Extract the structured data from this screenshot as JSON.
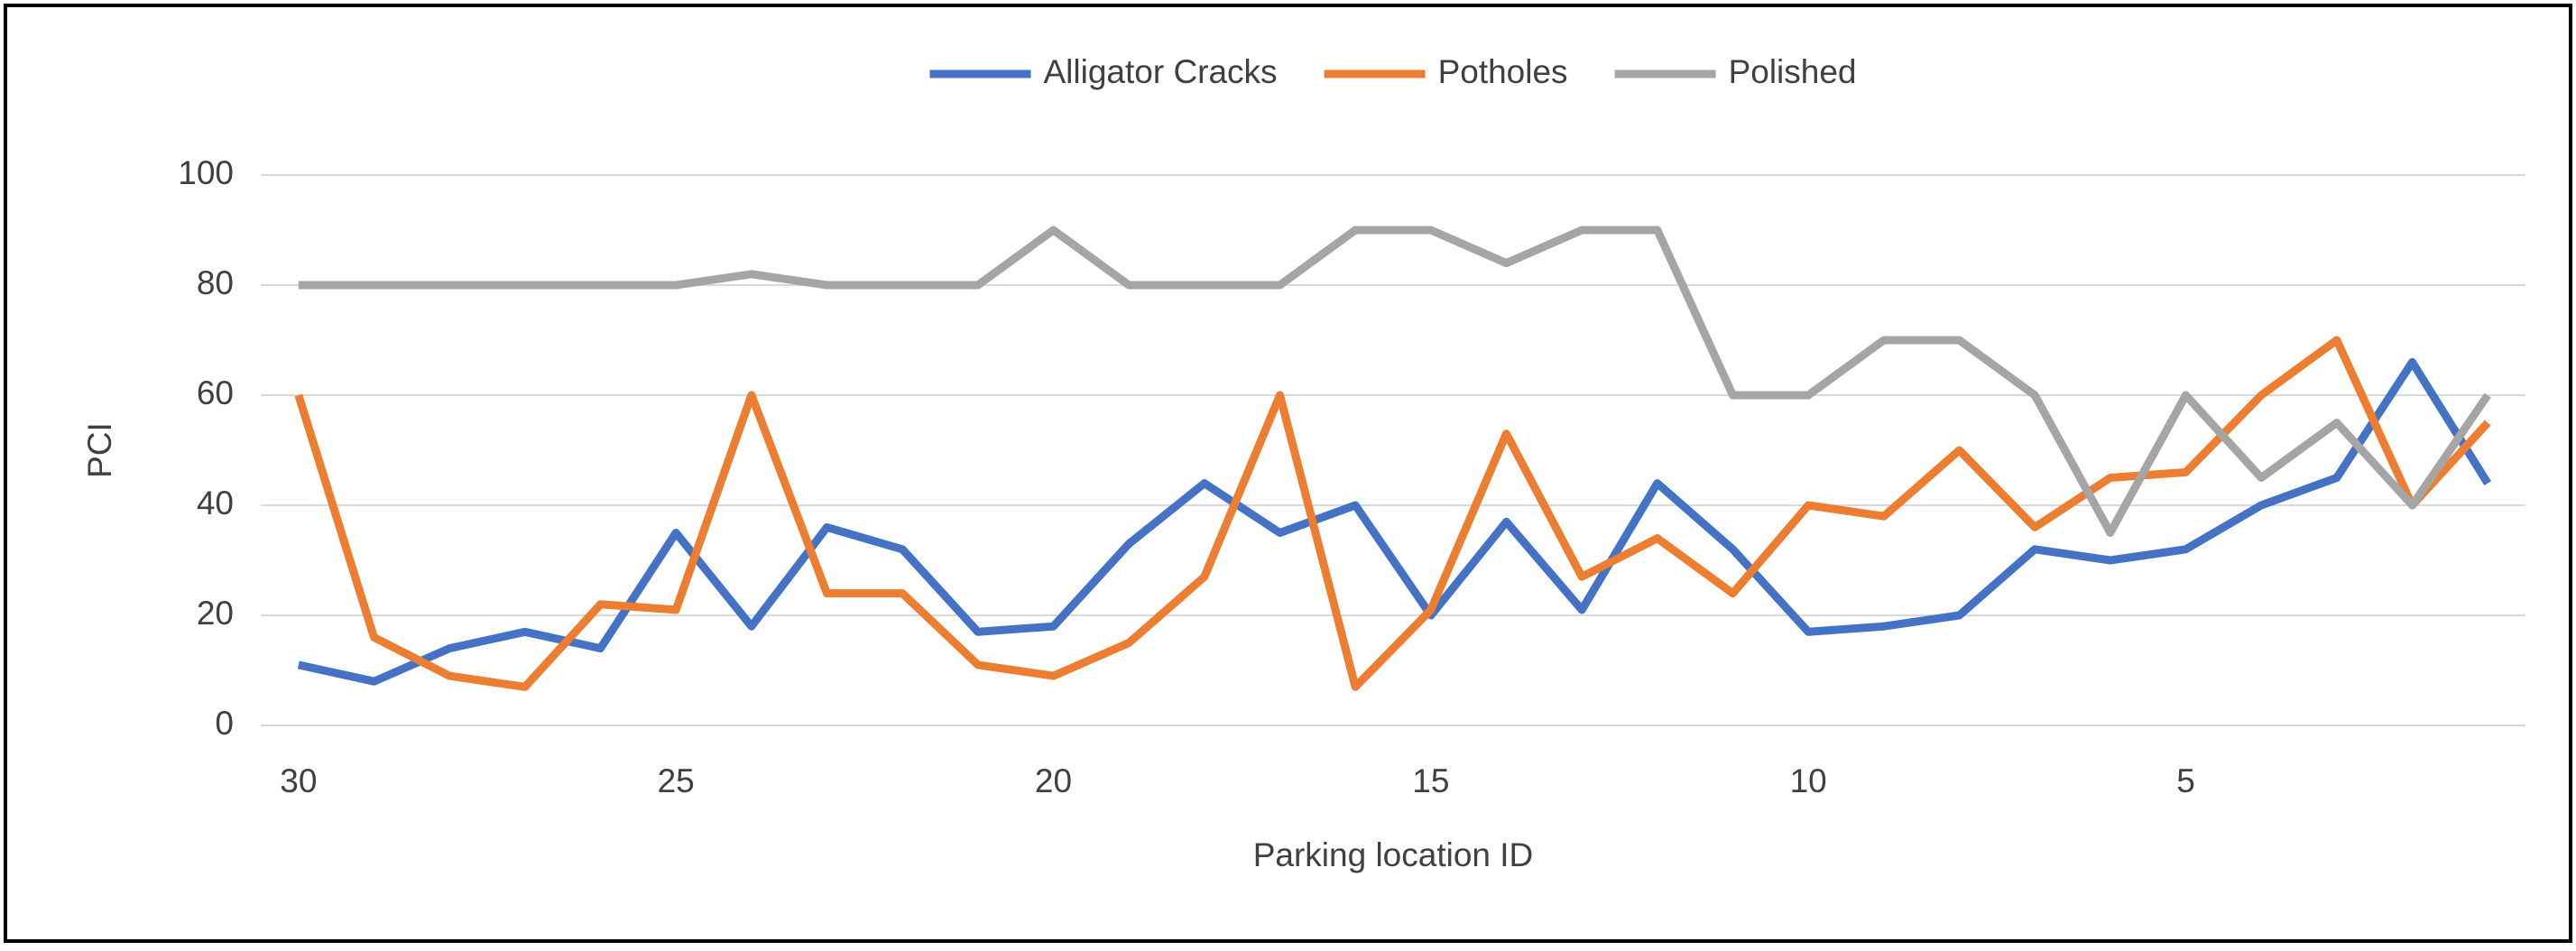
{
  "chart_data": {
    "type": "line",
    "x_label": "Parking location ID",
    "y_label": "PCI",
    "x": [
      30,
      29,
      28,
      27,
      26,
      25,
      24,
      23,
      22,
      21,
      20,
      19,
      18,
      17,
      16,
      15,
      14,
      13,
      12,
      11,
      10,
      9,
      8,
      7,
      6,
      5,
      4,
      3,
      2,
      1
    ],
    "xlim": [
      30.5,
      0.5
    ],
    "xticks": [
      30,
      25,
      20,
      15,
      10,
      5
    ],
    "ylim": [
      0,
      100
    ],
    "yticks": [
      0,
      20,
      40,
      60,
      80,
      100
    ],
    "grid": true,
    "legend": "top",
    "series": [
      {
        "name": "Alligator Cracks",
        "color": "#4472c4",
        "values": [
          11,
          8,
          14,
          17,
          14,
          35,
          18,
          36,
          32,
          17,
          18,
          33,
          44,
          35,
          40,
          20,
          37,
          21,
          44,
          32,
          17,
          18,
          20,
          32,
          30,
          32,
          40,
          45,
          66,
          44
        ]
      },
      {
        "name": "Potholes",
        "color": "#ed7d31",
        "values": [
          60,
          16,
          9,
          7,
          22,
          21,
          60,
          24,
          24,
          11,
          9,
          15,
          27,
          60,
          7,
          21,
          53,
          27,
          34,
          24,
          40,
          38,
          50,
          36,
          45,
          46,
          60,
          70,
          40,
          55
        ]
      },
      {
        "name": "Polished",
        "color": "#a5a5a5",
        "values": [
          80,
          80,
          80,
          80,
          80,
          80,
          82,
          80,
          80,
          80,
          90,
          80,
          80,
          80,
          90,
          90,
          84,
          90,
          90,
          60,
          60,
          70,
          70,
          60,
          35,
          60,
          45,
          55,
          40,
          60
        ]
      }
    ]
  }
}
